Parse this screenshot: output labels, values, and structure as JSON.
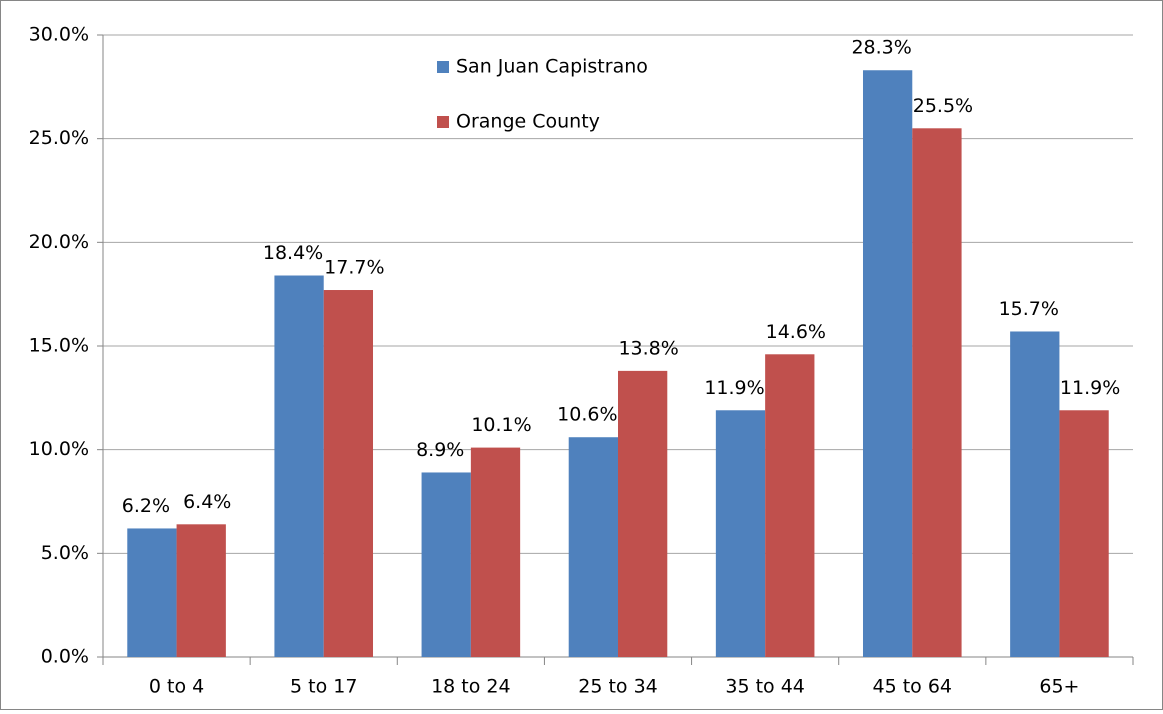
{
  "chart_data": {
    "type": "bar",
    "categories": [
      "0 to 4",
      "5 to 17",
      "18 to 24",
      "25 to 34",
      "35 to 44",
      "45 to 64",
      "65+"
    ],
    "series": [
      {
        "name": "San Juan Capistrano",
        "color": "#4f81bd",
        "values": [
          6.2,
          18.4,
          8.9,
          10.6,
          11.9,
          28.3,
          15.7
        ],
        "value_labels": [
          "6.2%",
          "18.4%",
          "8.9%",
          "10.6%",
          "11.9%",
          "28.3%",
          "15.7%"
        ]
      },
      {
        "name": "Orange County",
        "color": "#c0504d",
        "values": [
          6.4,
          17.7,
          10.1,
          13.8,
          14.6,
          25.5,
          11.9
        ],
        "value_labels": [
          "6.4%",
          "17.7%",
          "10.1%",
          "13.8%",
          "14.6%",
          "25.5%",
          "11.9%"
        ]
      }
    ],
    "ylim": [
      0,
      30
    ],
    "yticks": [
      {
        "value": 0,
        "label": "0.0%"
      },
      {
        "value": 5,
        "label": "5.0%"
      },
      {
        "value": 10,
        "label": "10.0%"
      },
      {
        "value": 15,
        "label": "15.0%"
      },
      {
        "value": 20,
        "label": "20.0%"
      },
      {
        "value": 25,
        "label": "25.0%"
      },
      {
        "value": 30,
        "label": "30.0%"
      }
    ],
    "grid": true,
    "legend": "top"
  }
}
